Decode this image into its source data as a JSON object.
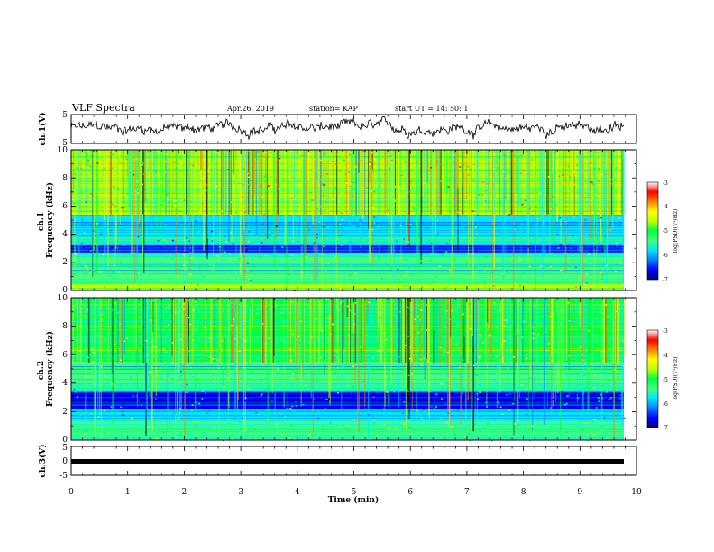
{
  "header": {
    "title": "VLF Spectra",
    "date": "Apr.26, 2019",
    "station": "station= KAP",
    "start": "start  UT =   14: 50: 1"
  },
  "colors": {
    "colormap": [
      "#00007f",
      "#0000ff",
      "#0080ff",
      "#00e5ff",
      "#40ff80",
      "#00ff40",
      "#c0ff00",
      "#ffff00",
      "#ff8000",
      "#ff0000",
      "#ffffff"
    ]
  },
  "chart_data": [
    {
      "type": "line",
      "name": "ch1-waveform",
      "ylabel": "ch.1(V)",
      "ylim": [
        -5,
        5
      ],
      "yticks": [
        "5",
        "-5"
      ],
      "xlim": [
        0,
        10
      ],
      "description_values": {
        "mean": 0.3,
        "amplitude": 2.5
      }
    },
    {
      "type": "heatmap",
      "name": "ch1-spectrogram",
      "ylabel": "ch.1\nFrequency (kHz)",
      "ylim": [
        0,
        10
      ],
      "yticks": [
        "0",
        "2",
        "4",
        "6",
        "8",
        "10"
      ],
      "xlim": [
        0,
        10
      ],
      "colorbar": {
        "label": "log(PSD)(V²/Hz)",
        "range": [
          -7,
          -3
        ],
        "ticks": [
          "-3",
          "-4",
          "-5",
          "-6",
          "-7"
        ]
      },
      "bands_khz": [
        {
          "from": 0.0,
          "to": 0.5,
          "level": "high"
        },
        {
          "from": 0.5,
          "to": 1.0,
          "level": "mid"
        },
        {
          "from": 1.0,
          "to": 2.7,
          "level": "mid"
        },
        {
          "from": 2.7,
          "to": 3.2,
          "level": "low"
        },
        {
          "from": 3.2,
          "to": 5.4,
          "level": "low-mid"
        },
        {
          "from": 5.4,
          "to": 10.0,
          "level": "high"
        }
      ]
    },
    {
      "type": "heatmap",
      "name": "ch2-spectrogram",
      "ylabel": "ch.2\nFrequency (kHz)",
      "ylim": [
        0,
        10
      ],
      "yticks": [
        "0",
        "2",
        "4",
        "6",
        "8",
        "10"
      ],
      "xlim": [
        0,
        10
      ],
      "colorbar": {
        "label": "log(PSD)(V²/Hz)",
        "range": [
          -7,
          -3
        ],
        "ticks": [
          "-3",
          "-4",
          "-5",
          "-6",
          "-7"
        ]
      },
      "bands_khz": [
        {
          "from": 0.0,
          "to": 0.6,
          "level": "mid"
        },
        {
          "from": 0.6,
          "to": 1.5,
          "level": "mid"
        },
        {
          "from": 1.5,
          "to": 2.2,
          "level": "low-mid"
        },
        {
          "from": 2.2,
          "to": 3.4,
          "level": "low"
        },
        {
          "from": 3.4,
          "to": 5.5,
          "level": "mid"
        },
        {
          "from": 5.5,
          "to": 10.0,
          "level": "mid-high"
        }
      ]
    },
    {
      "type": "line",
      "name": "ch3-waveform",
      "ylabel": "ch.3(V)",
      "ylim": [
        -5,
        5
      ],
      "yticks": [
        "5",
        "0",
        "-5"
      ],
      "xlim": [
        0,
        10
      ],
      "xlabel": "Time (min)",
      "xticks": [
        "0",
        "1",
        "2",
        "3",
        "4",
        "5",
        "6",
        "7",
        "8",
        "9",
        "10"
      ],
      "constant_value": 0
    }
  ]
}
